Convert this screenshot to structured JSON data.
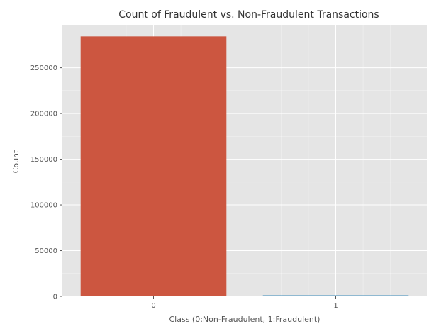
{
  "chart_data": {
    "type": "bar",
    "title": "Count of Fraudulent vs. Non-Fraudulent Transactions",
    "xlabel": "Class (0:Non-Fraudulent, 1:Fraudulent)",
    "ylabel": "Count",
    "categories": [
      "0",
      "1"
    ],
    "values": [
      284315,
      492
    ],
    "ylim": [
      0,
      297000
    ],
    "yticks": [
      0,
      50000,
      100000,
      150000,
      200000,
      250000
    ],
    "grid": true,
    "colors": {
      "bars": [
        "#cc5640",
        "#3a8dbd"
      ],
      "plot_background": "#e5e5e5",
      "grid": "#ffffff",
      "text": "#555555",
      "title": "#333333"
    }
  }
}
